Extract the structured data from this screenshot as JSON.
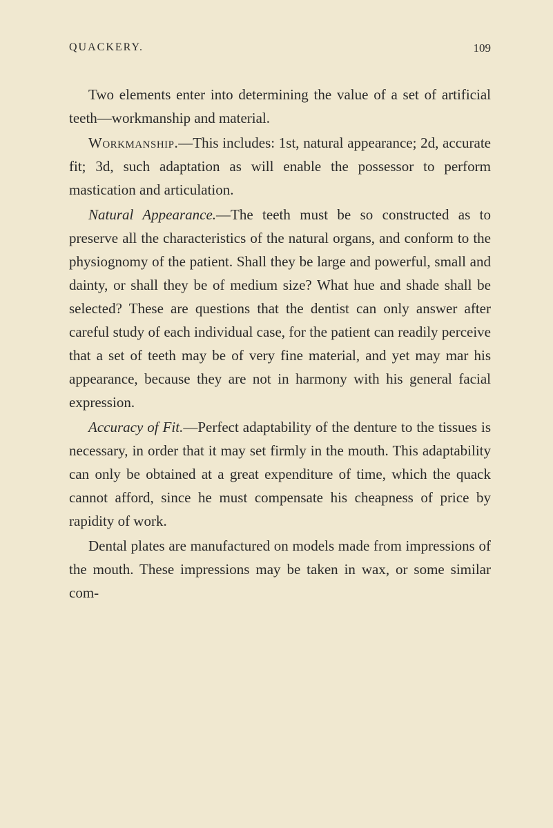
{
  "page": {
    "header_title": "QUACKERY.",
    "page_number": "109",
    "paragraphs": {
      "p1": "Two elements enter into determining the value of a set of artificial teeth—workmanship and material.",
      "p2_caps": "Workmanship.",
      "p2_rest": "—This includes: 1st, natural appearance; 2d, accurate fit; 3d, such adaptation as will enable the possessor to perform mastication and articulation.",
      "p3_italic": "Natural Appearance.",
      "p3_rest": "—The teeth must be so constructed as to preserve all the characteristics of the natural organs, and conform to the physiognomy of the patient. Shall they be large and powerful, small and dainty, or shall they be of medium size? What hue and shade shall be selected? These are questions that the dentist can only answer after careful study of each individual case, for the patient can readily perceive that a set of teeth may be of very fine material, and yet may mar his appearance, because they are not in harmony with his general facial expression.",
      "p4_italic": "Accuracy of Fit.",
      "p4_rest": "—Perfect adaptability of the denture to the tissues is necessary, in order that it may set firmly in the mouth. This adaptability can only be obtained at a great expenditure of time, which the quack cannot afford, since he must compensate his cheapness of price by rapidity of work.",
      "p5": "Dental plates are manufactured on models made from impressions of the mouth. These impressions may be taken in wax, or some similar com-"
    }
  },
  "colors": {
    "background": "#f0e8d0",
    "text": "#2a2a2a"
  },
  "typography": {
    "body_size": 21,
    "header_size": 16,
    "line_height": 1.62
  }
}
